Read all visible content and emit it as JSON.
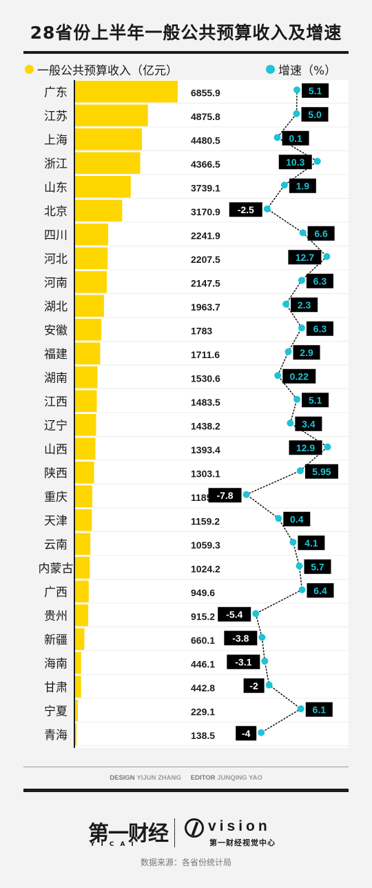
{
  "title": "28省份上半年一般公共预算收入及增速",
  "legend": {
    "revenue_label": "一般公共预算收入（亿元）",
    "growth_label": "增速（%）"
  },
  "colors": {
    "bar": "#ffd600",
    "growth_dot": "#1dc3d6",
    "axis": "#1a1a1a",
    "label_bg": "#000000"
  },
  "chart_data": {
    "type": "bar",
    "title": "28省份上半年一般公共预算收入及增速",
    "categories": [
      "广东",
      "江苏",
      "上海",
      "浙江",
      "山东",
      "北京",
      "四川",
      "河北",
      "河南",
      "湖北",
      "安徽",
      "福建",
      "湖南",
      "江西",
      "辽宁",
      "山西",
      "陕西",
      "重庆",
      "天津",
      "云南",
      "内蒙古",
      "广西",
      "贵州",
      "新疆",
      "海南",
      "甘肃",
      "宁夏",
      "青海"
    ],
    "series": [
      {
        "name": "一般公共预算收入（亿元）",
        "type": "bar",
        "values": [
          6855.9,
          4875.8,
          4480.5,
          4366.5,
          3739.1,
          3170.9,
          2241.9,
          2207.5,
          2147.5,
          1963.7,
          1783,
          1711.6,
          1530.6,
          1483.5,
          1438.2,
          1393.4,
          1303.1,
          1185.9,
          1159.2,
          1059.3,
          1024.2,
          949.6,
          915.2,
          660.1,
          446.1,
          442.8,
          229.1,
          138.5
        ],
        "labels": [
          "6855.9",
          "4875.8",
          "4480.5",
          "4366.5",
          "3739.1",
          "3170.9",
          "2241.9",
          "2207.5",
          "2147.5",
          "1963.7",
          "1783",
          "1711.6",
          "1530.6",
          "1483.5",
          "1438.2",
          "1393.4",
          "1303.1",
          "1185.9",
          "1159.2",
          "1059.3",
          "1024.2",
          "949.6",
          "915.2",
          "660.1",
          "446.1",
          "442.8",
          "229.1",
          "138.5"
        ]
      },
      {
        "name": "增速（%）",
        "type": "line",
        "values": [
          5.1,
          5.0,
          0.1,
          10.3,
          1.9,
          -2.5,
          6.6,
          12.7,
          6.3,
          2.3,
          6.3,
          2.9,
          0.22,
          5.1,
          3.4,
          12.9,
          5.95,
          -7.8,
          0.4,
          4.1,
          5.7,
          6.4,
          -5.4,
          -3.8,
          -3.1,
          -2,
          6.1,
          -4
        ],
        "labels": [
          "5.1",
          "5.0",
          "0.1",
          "10.3",
          "1.9",
          "-2.5",
          "6.6",
          "12.7",
          "6.3",
          "2.3",
          "6.3",
          "2.9",
          "0.22",
          "5.1",
          "3.4",
          "12.9",
          "5.95",
          "-7.8",
          "0.4",
          "4.1",
          "5.7",
          "6.4",
          "-5.4",
          "-3.8",
          "-3.1",
          "-2",
          "6.1",
          "-4"
        ]
      }
    ],
    "grid": false
  },
  "credits": {
    "design_caption": "DESIGN",
    "design_name": "YIJUN ZHANG",
    "editor_caption": "EDITOR",
    "editor_name": "JUNQING YAO"
  },
  "brand": {
    "yicai": "第一财经",
    "yicai_sub": "YICAI",
    "vision": "vision",
    "vision_sub": "第一财经视觉中心"
  },
  "source": "数据来源：各省份统计局"
}
